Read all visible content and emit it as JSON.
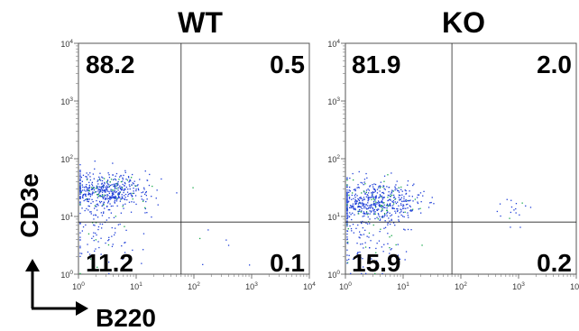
{
  "chart_data": [
    {
      "type": "scatter",
      "title": "WT",
      "xlabel": "B220",
      "ylabel": "CD3e",
      "x_scale": "log",
      "y_scale": "log",
      "xlim": [
        1,
        10000
      ],
      "ylim": [
        1,
        10000
      ],
      "x_ticks": [
        "10^0",
        "10^1",
        "10^2",
        "10^3",
        "10^4"
      ],
      "y_ticks": [
        "10^0",
        "10^1",
        "10^2",
        "10^3",
        "10^4"
      ],
      "gate": {
        "x": 60,
        "y": 8
      },
      "quadrants": {
        "upper_left": "88.2",
        "upper_right": "0.5",
        "lower_left": "11.2",
        "lower_right": "0.1"
      },
      "populations": [
        {
          "name": "",
          "x_center": 3,
          "y_center": 28,
          "x_spread": 1.1,
          "y_spread": 0.45,
          "count": 520
        },
        {
          "name": "",
          "x_center": 2.5,
          "y_center": 5,
          "x_spread": 0.9,
          "y_spread": 0.9,
          "count": 90
        },
        {
          "name": "",
          "x_center": 400,
          "y_center": 3,
          "x_spread": 1.2,
          "y_spread": 1.0,
          "count": 6
        }
      ],
      "point_color": "#1f3fd8"
    },
    {
      "type": "scatter",
      "title": "KO",
      "xlabel": "B220",
      "ylabel": "CD3e",
      "x_scale": "log",
      "y_scale": "log",
      "xlim": [
        1,
        10000
      ],
      "ylim": [
        1,
        10000
      ],
      "x_ticks": [
        "10^0",
        "10^1",
        "10^2",
        "10^3",
        "10^4"
      ],
      "y_ticks": [
        "10^0",
        "10^1",
        "10^2",
        "10^3",
        "10^4"
      ],
      "gate": {
        "x": 70,
        "y": 8
      },
      "quadrants": {
        "upper_left": "81.9",
        "upper_right": "2.0",
        "lower_left": "15.9",
        "lower_right": "0.2"
      },
      "populations": [
        {
          "name": "",
          "x_center": 3,
          "y_center": 18,
          "x_spread": 1.1,
          "y_spread": 0.5,
          "count": 560
        },
        {
          "name": "",
          "x_center": 2.5,
          "y_center": 4,
          "x_spread": 0.9,
          "y_spread": 0.9,
          "count": 110
        },
        {
          "name": "",
          "x_center": 750,
          "y_center": 14,
          "x_spread": 0.35,
          "y_spread": 0.45,
          "count": 18
        }
      ],
      "point_color": "#1f3fd8"
    }
  ],
  "axis": {
    "x_label": "B220",
    "y_label": "CD3e"
  }
}
